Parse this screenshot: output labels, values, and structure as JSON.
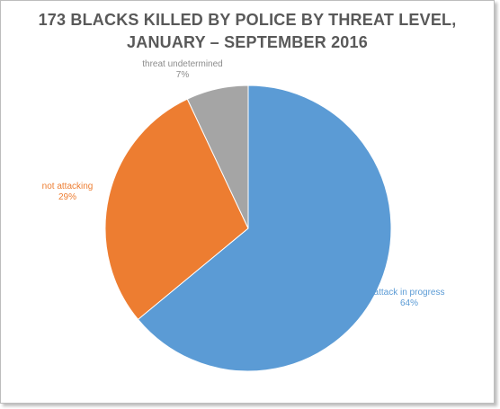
{
  "chart_data": {
    "type": "pie",
    "title_line1": "173 BLACKS KILLED BY POLICE BY THREAT LEVEL,",
    "title_line2": "JANUARY – SEPTEMBER 2016",
    "slices": [
      {
        "label": "attack in progress",
        "percent_text": "64%",
        "value": 64,
        "color": "#5b9bd5"
      },
      {
        "label": "not attacking",
        "percent_text": "29%",
        "value": 29,
        "color": "#ed7d31"
      },
      {
        "label": "threat undetermined",
        "percent_text": "7%",
        "value": 7,
        "color": "#a5a5a5"
      }
    ]
  }
}
